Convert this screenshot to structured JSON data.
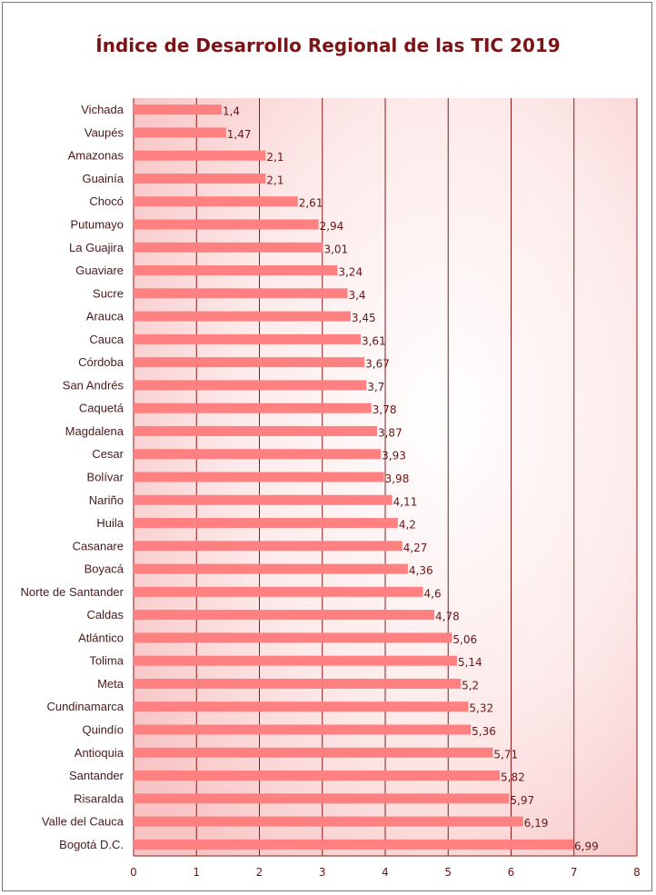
{
  "chart_data": {
    "type": "bar",
    "orientation": "horizontal",
    "title": "Índice de Desarrollo Regional de las TIC 2019",
    "xlabel": "",
    "ylabel": "",
    "xlim": [
      0,
      8
    ],
    "x_ticks": [
      "0",
      "1",
      "2",
      "3",
      "4",
      "5",
      "6",
      "7",
      "8"
    ],
    "grid": true,
    "bar_color": "#ff8080",
    "grid_color": "#8b1a1a",
    "title_color": "#7b1416",
    "categories": [
      "Vichada",
      "Vaupés",
      "Amazonas",
      "Guainía",
      "Chocó",
      "Putumayo",
      "La Guajira",
      "Guaviare",
      "Sucre",
      "Arauca",
      "Cauca",
      "Córdoba",
      "San Andrés",
      "Caquetá",
      "Magdalena",
      "Cesar",
      "Bolívar",
      "Nariño",
      "Huila",
      "Casanare",
      "Boyacá",
      "Norte de Santander",
      "Caldas",
      "Atlántico",
      "Tolima",
      "Meta",
      "Cundinamarca",
      "Quindío",
      "Antioquia",
      "Santander",
      "Risaralda",
      "Valle del Cauca",
      "Bogotá D.C."
    ],
    "values": [
      1.4,
      1.47,
      2.1,
      2.1,
      2.61,
      2.94,
      3.01,
      3.24,
      3.4,
      3.45,
      3.61,
      3.67,
      3.7,
      3.78,
      3.87,
      3.93,
      3.98,
      4.11,
      4.2,
      4.27,
      4.36,
      4.6,
      4.78,
      5.06,
      5.14,
      5.2,
      5.32,
      5.36,
      5.71,
      5.82,
      5.97,
      6.19,
      6.99
    ],
    "value_labels": [
      "1,4",
      "1,47",
      "2,1",
      "2,1",
      "2,61",
      "2,94",
      "3,01",
      "3,24",
      "3,4",
      "3,45",
      "3,61",
      "3,67",
      "3,7",
      "3,78",
      "3,87",
      "3,93",
      "3,98",
      "4,11",
      "4,2",
      "4,27",
      "4,36",
      "4,6",
      "4,78",
      "5,06",
      "5,14",
      "5,2",
      "5,32",
      "5,36",
      "5,71",
      "5,82",
      "5,97",
      "6,19",
      "6,99"
    ]
  }
}
